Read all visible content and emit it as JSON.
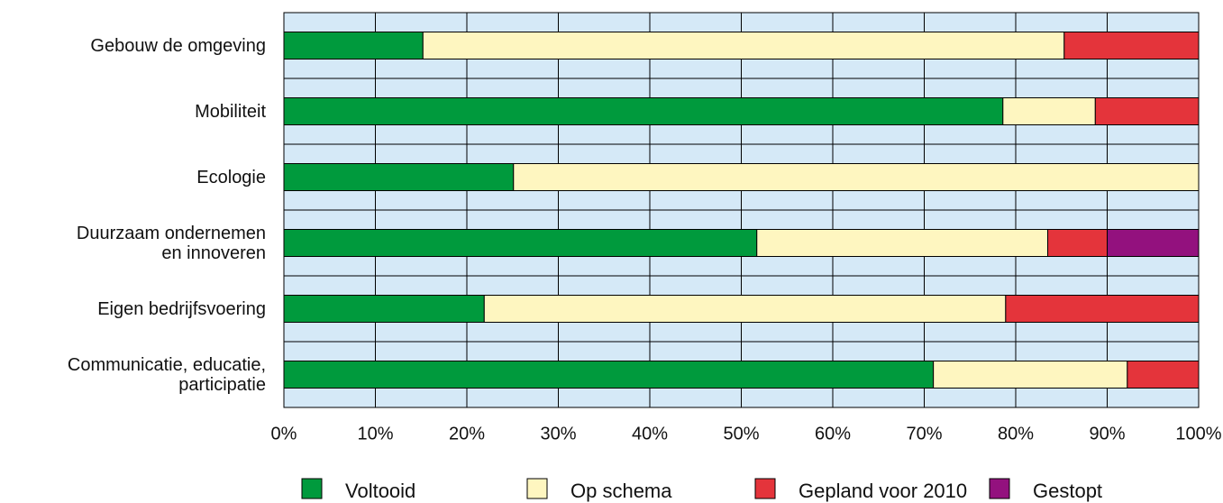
{
  "chart_data": {
    "type": "stacked_barh",
    "categories": [
      "Gebouw de omgeving",
      "Mobiliteit",
      "Ecologie",
      "Duurzaam ondernemen\nen innoveren",
      "Eigen bedrijfsvoering",
      "Communicatie, educatie,\nparticipatie"
    ],
    "series": [
      {
        "name": "Voltooid",
        "color": "#009a3d",
        "values": [
          15.2,
          78.6,
          25.1,
          51.7,
          21.9,
          71.0
        ]
      },
      {
        "name": "Op schema",
        "color": "#fef6c0",
        "values": [
          70.1,
          10.1,
          74.9,
          31.8,
          57.0,
          21.2
        ]
      },
      {
        "name": "Gepland voor 2010",
        "color": "#e4343b",
        "values": [
          14.7,
          11.3,
          0,
          6.5,
          21.1,
          7.8
        ]
      },
      {
        "name": "Gestopt",
        "color": "#93117e",
        "values": [
          0,
          0,
          0,
          10.0,
          0,
          0
        ]
      }
    ],
    "xlim": [
      0,
      100
    ],
    "xticks": [
      {
        "value": 0,
        "label": "0%"
      },
      {
        "value": 10,
        "label": "10%"
      },
      {
        "value": 20,
        "label": "20%"
      },
      {
        "value": 30,
        "label": "30%"
      },
      {
        "value": 40,
        "label": "40%"
      },
      {
        "value": 50,
        "label": "50%"
      },
      {
        "value": 60,
        "label": "60%"
      },
      {
        "value": 70,
        "label": "70%"
      },
      {
        "value": 80,
        "label": "80%"
      },
      {
        "value": 90,
        "label": "90%"
      },
      {
        "value": 100,
        "label": "100%"
      }
    ],
    "grid": true,
    "background": "#d5e9f7",
    "legend": "bottom"
  }
}
